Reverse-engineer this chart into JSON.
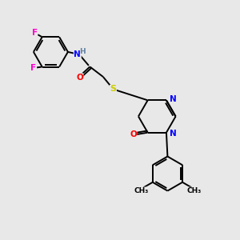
{
  "background_color": "#e8e8e8",
  "bond_color": "#000000",
  "atom_colors": {
    "F": "#ff00cc",
    "N": "#0000ff",
    "O": "#ff0000",
    "S": "#cccc00",
    "H": "#6080a0",
    "C": "#000000"
  },
  "figsize": [
    3.0,
    3.0
  ],
  "dpi": 100,
  "lw": 1.4,
  "fs": 7.5
}
